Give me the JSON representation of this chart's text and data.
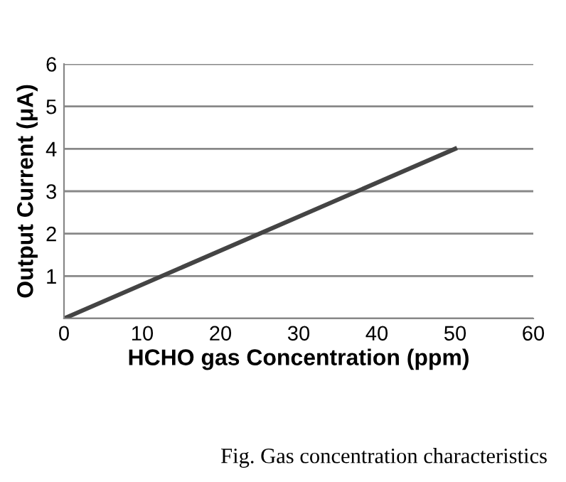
{
  "chart_data": {
    "type": "line",
    "xlabel": "HCHO gas Concentration (ppm)",
    "ylabel": "Output Current (μA)",
    "x": [
      0,
      50
    ],
    "series": [
      {
        "color": "#444444",
        "values": [
          0,
          4
        ]
      }
    ],
    "xlim": [
      0,
      60
    ],
    "xticks": [
      0,
      10,
      20,
      30,
      40,
      50,
      60
    ],
    "ylim": [
      0,
      6
    ],
    "yticks": [
      {
        "value": 0,
        "label": null
      },
      1,
      2,
      3,
      4,
      5,
      6
    ],
    "grid": "y",
    "marker": "none",
    "line_style": "solid",
    "annotations": [
      "Fig. Gas concentration characteristics"
    ]
  }
}
